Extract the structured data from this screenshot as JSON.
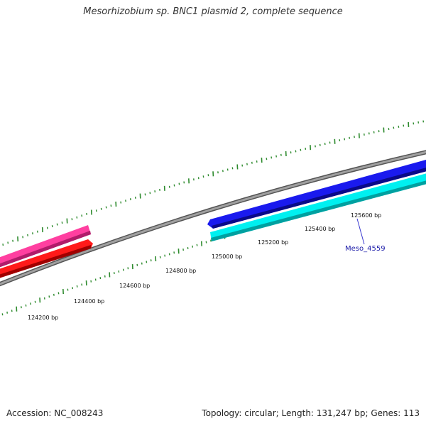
{
  "title": "Mesorhizobium sp. BNC1 plasmid 2, complete sequence",
  "footer": {
    "accession": "Accession: NC_008243",
    "summary": "Topology: circular; Length: 131,247 bp; Genes: 113"
  },
  "ruler": {
    "labels": [
      "124200 bp",
      "124400 bp",
      "124600 bp",
      "124800 bp",
      "125000 bp",
      "125200 bp",
      "125400 bp",
      "125600 bp"
    ]
  },
  "genes": {
    "callout": "Meso_4559"
  },
  "colors": {
    "backbone": "#8a8a8a",
    "tick": "#2e8b2e",
    "gene_pink": "#ff3fa0",
    "gene_red": "#ff1a1a",
    "gene_blue": "#1a1aee",
    "gene_cyan": "#00f0f0",
    "callout_line": "#3a3ad0"
  }
}
